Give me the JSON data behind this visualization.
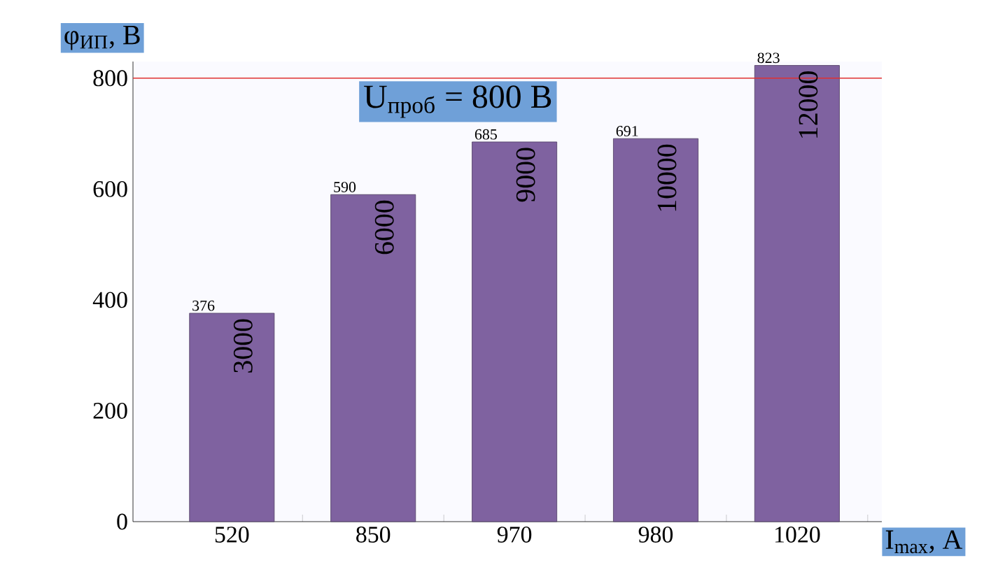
{
  "chart_data": {
    "type": "bar",
    "categories": [
      "520",
      "850",
      "970",
      "980",
      "1020"
    ],
    "values": [
      376,
      590,
      685,
      691,
      823
    ],
    "color": "#7f62a0",
    "ylabel": "φ$_{ИП}$, В",
    "xlabel": "I$_{max}$, A",
    "ylim": [
      0,
      830
    ],
    "yticks": [
      0,
      200,
      400,
      600,
      800
    ],
    "value_labels": [
      "376",
      "590",
      "685",
      "691",
      "823"
    ],
    "ref_lines": [
      {
        "axis": "y",
        "value": 800,
        "label": "U$_{проб}$ = 800 В",
        "color": "#e03030"
      }
    ],
    "annotations": [
      {
        "text": "3000",
        "x": "520",
        "y": 376
      },
      {
        "text": "6000",
        "x": "850",
        "y": 590
      },
      {
        "text": "9000",
        "x": "970",
        "y": 685
      },
      {
        "text": "10000",
        "x": "980",
        "y": 691
      },
      {
        "text": "12000",
        "x": "1020",
        "y": 823
      }
    ],
    "grid": false
  }
}
